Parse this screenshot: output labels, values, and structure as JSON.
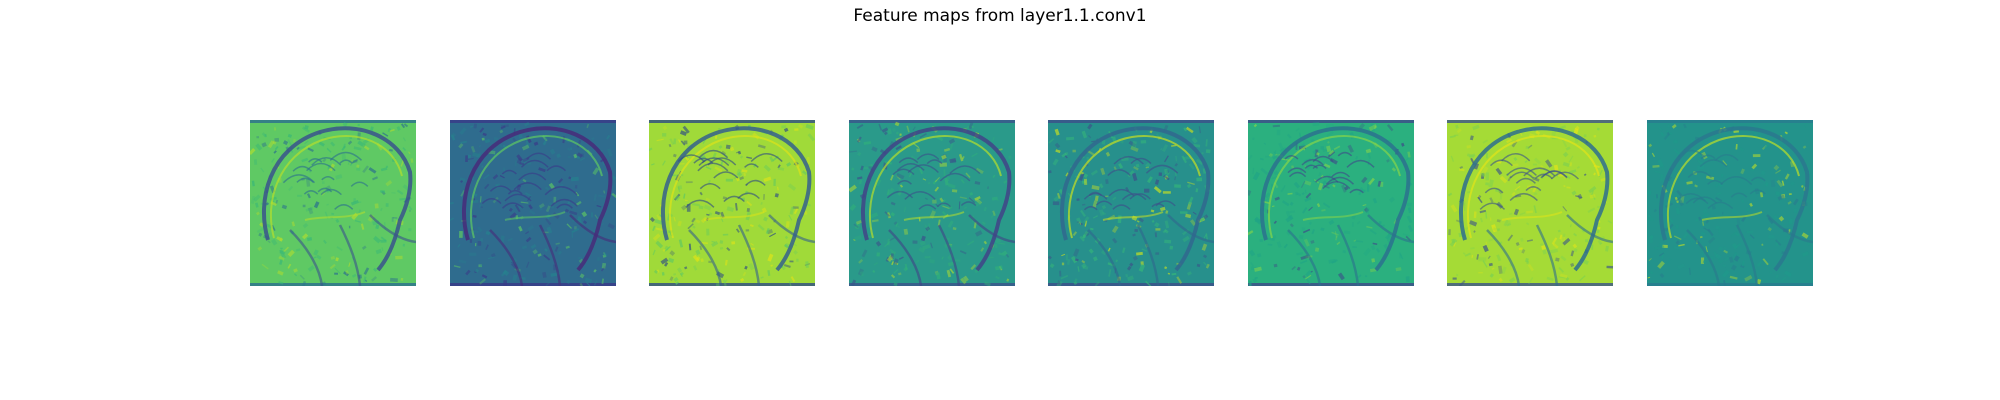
{
  "figure": {
    "title": "Feature maps from layer1.1.conv1"
  },
  "colormap": "viridis",
  "feature_maps": [
    {
      "name": "feature-map-1",
      "base": "#5fc964",
      "outline": "#2a6f8e",
      "skull": "#3a548c",
      "fill_detail": "#38b777",
      "highlight": "#b4de2c"
    },
    {
      "name": "feature-map-2",
      "base": "#2f6c8e",
      "outline": "#3a3a88",
      "skull": "#472c7a",
      "fill_detail": "#26828e",
      "highlight": "#5ec962"
    },
    {
      "name": "feature-map-3",
      "base": "#a0da39",
      "outline": "#2d4a86",
      "skull": "#35608d",
      "fill_detail": "#5ec962",
      "highlight": "#dde318"
    },
    {
      "name": "feature-map-4",
      "base": "#2a9a8a",
      "outline": "#3b528b",
      "skull": "#414487",
      "fill_detail": "#30b17a",
      "highlight": "#b5de2b"
    },
    {
      "name": "feature-map-5",
      "base": "#27908c",
      "outline": "#3d4e8a",
      "skull": "#31688e",
      "fill_detail": "#35b779",
      "highlight": "#c8e020"
    },
    {
      "name": "feature-map-6",
      "base": "#2bb07f",
      "outline": "#3e4a89",
      "skull": "#2c728e",
      "fill_detail": "#20a486",
      "highlight": "#86d549"
    },
    {
      "name": "feature-map-7",
      "base": "#a5db36",
      "outline": "#3b528b",
      "skull": "#2e6e8e",
      "fill_detail": "#7ad151",
      "highlight": "#e2e418"
    },
    {
      "name": "feature-map-8",
      "base": "#23938b",
      "outline": "#287c8e",
      "skull": "#2a788e",
      "fill_detail": "#1f9a8a",
      "highlight": "#bddf26"
    }
  ]
}
